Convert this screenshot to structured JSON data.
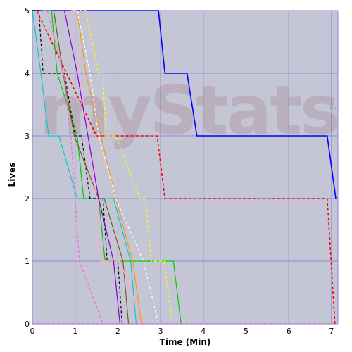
{
  "chart_data": {
    "type": "line",
    "title": "",
    "xlabel": "Time (Min)",
    "ylabel": "Lives",
    "xlim": [
      0,
      7.15
    ],
    "ylim": [
      0,
      5
    ],
    "x_ticks": [
      0,
      1,
      2,
      3,
      4,
      5,
      6,
      7
    ],
    "y_ticks": [
      0,
      1,
      2,
      3,
      4,
      5
    ],
    "grid": true,
    "legend": "none",
    "watermark": "myStats",
    "colors": {
      "plot_bg": "#c4c6d6",
      "grid": "#8a8ad8",
      "frame": "#ffffff"
    },
    "series": [
      {
        "color": "#0000ff",
        "dash": "solid",
        "x": [
          0,
          2.95,
          3.1,
          3.62,
          3.85,
          6.9,
          7.1
        ],
        "y": [
          5,
          5,
          4,
          4,
          3,
          3,
          2
        ]
      },
      {
        "color": "#ff0000",
        "dash": "dashed",
        "x": [
          0,
          0.1,
          1.5,
          2.92,
          3.1,
          6.9,
          7.08
        ],
        "y": [
          5,
          5,
          3,
          3,
          2,
          2,
          0
        ]
      },
      {
        "color": "#00cccc",
        "dash": "solid",
        "x": [
          0,
          0.2,
          0.38,
          0.62,
          1.05,
          1.9,
          2.3,
          2.43
        ],
        "y": [
          5,
          4,
          3,
          3,
          2,
          2,
          1,
          0
        ]
      },
      {
        "color": "#00cc00",
        "dash": "solid",
        "x": [
          0.3,
          0.45,
          0.58,
          1.05,
          1.2,
          1.55,
          1.7,
          2.05,
          2.3,
          3.3,
          3.48
        ],
        "y": [
          5,
          5,
          4,
          3,
          2,
          2,
          1,
          1,
          1,
          1,
          0
        ]
      },
      {
        "color": "#000000",
        "dash": "dashed",
        "x": [
          0,
          0.15,
          0.25,
          0.75,
          1.0,
          1.15,
          1.35,
          1.65,
          1.75,
          2.0,
          2.1
        ],
        "y": [
          5,
          5,
          4,
          4,
          3,
          3,
          2,
          2,
          1,
          1,
          0
        ]
      },
      {
        "color": "#7a5a1e",
        "dash": "solid",
        "x": [
          0.5,
          0.72,
          0.98,
          1.55,
          1.68,
          2.12,
          2.25
        ],
        "y": [
          5,
          4,
          3,
          2,
          2,
          1,
          0
        ]
      },
      {
        "color": "#ff66cc",
        "dash": "dashed",
        "x": [
          0.25,
          0.35,
          0.72,
          0.9,
          1.1,
          1.65
        ],
        "y": [
          5,
          5,
          4,
          3,
          1,
          0
        ]
      },
      {
        "color": "#ffaacc",
        "dash": "solid",
        "x": [
          0.9,
          1.1,
          1.5,
          1.6,
          1.9,
          2.05,
          2.6
        ],
        "y": [
          5,
          4,
          2,
          1,
          1,
          1,
          0
        ]
      },
      {
        "color": "#8800cc",
        "dash": "solid",
        "x": [
          0.75,
          1.05,
          1.55,
          1.9,
          2.05
        ],
        "y": [
          5,
          4,
          2,
          1,
          0
        ]
      },
      {
        "color": "#ff9900",
        "dash": "solid",
        "x": [
          0.9,
          1.05,
          1.25,
          1.6,
          1.95,
          2.35,
          2.55
        ],
        "y": [
          5,
          5,
          4,
          3,
          2,
          1,
          0
        ]
      },
      {
        "color": "#ffffff",
        "dash": "dashed",
        "x": [
          0.95,
          1.05,
          1.35,
          1.55,
          1.95,
          2.6,
          2.95
        ],
        "y": [
          5,
          5,
          4,
          3,
          2,
          1,
          0
        ]
      },
      {
        "color": "#ffff00",
        "dash": "dashed",
        "x": [
          1.1,
          1.25,
          1.55,
          1.65,
          1.72,
          1.95,
          2.52,
          2.65,
          2.78,
          3.08,
          3.28
        ],
        "y": [
          5,
          5,
          4,
          4,
          3,
          3,
          2,
          2,
          1,
          1,
          0
        ]
      },
      {
        "color": "#cc66cc",
        "dash": "dashed",
        "x": [
          0,
          7.08
        ],
        "y": [
          0,
          0
        ]
      }
    ]
  }
}
